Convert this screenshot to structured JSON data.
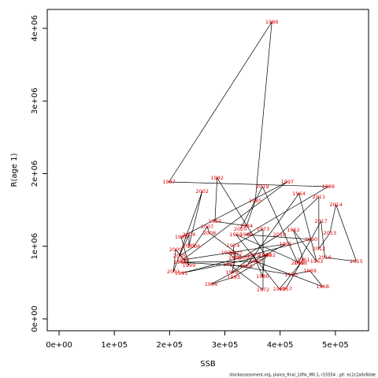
{
  "chart_data": {
    "type": "scatter",
    "path": true,
    "xlabel": "SSB",
    "ylabel": "R(age 1)",
    "footnote": "stockassessment.org, plaice_final_10fix_M0.1, r15554 , git: ec2c2a0c6dde",
    "color": "#e00000",
    "line_color": "#000000",
    "labels": [
      1957,
      1958,
      1959,
      1960,
      1961,
      1962,
      1963,
      1964,
      1965,
      1966,
      1967,
      1968,
      1969,
      1970,
      1971,
      1972,
      1973,
      1974,
      1975,
      1976,
      1977,
      1978,
      1979,
      1980,
      1981,
      1982,
      1983,
      1984,
      1985,
      1986,
      1987,
      1988,
      1989,
      1990,
      1991,
      1992,
      1993,
      1994,
      1995,
      1996,
      1997,
      1998,
      1999,
      2000,
      2001,
      2002,
      2003,
      2004,
      2005,
      2006,
      2007,
      2008,
      2009,
      2010,
      2011,
      2012,
      2013,
      2014,
      2015,
      2016,
      2017,
      2018,
      2019,
      2020
    ],
    "x": [
      410000,
      437000,
      320000,
      399000,
      442000,
      424000,
      466000,
      434000,
      339000,
      219000,
      356000,
      477000,
      454000,
      420000,
      308000,
      369000,
      369000,
      315000,
      318000,
      305000,
      320000,
      313000,
      352000,
      368000,
      373000,
      286000,
      282000,
      339000,
      355000,
      385000,
      199000,
      487000,
      339000,
      456000,
      221000,
      380000,
      316000,
      275000,
      410000,
      224000,
      413000,
      221000,
      235000,
      211000,
      207000,
      259000,
      235000,
      235000,
      218000,
      244000,
      268000,
      272000,
      332000,
      399000,
      470000,
      470000,
      490000,
      501000,
      538000,
      481000,
      474000,
      432000,
      368000,
      328000
    ],
    "values": [
      412000,
      770000,
      1160000,
      412000,
      813000,
      1225000,
      791000,
      1724000,
      726000,
      780000,
      791000,
      444000,
      661000,
      607000,
      748000,
      401000,
      1236000,
      1008000,
      835000,
      911000,
      900000,
      640000,
      878000,
      585000,
      878000,
      1940000,
      1344000,
      1279000,
      1626000,
      4087000,
      1886000,
      1821000,
      1160000,
      1095000,
      629000,
      878000,
      575000,
      477000,
      1030000,
      813000,
      1886000,
      1127000,
      737000,
      954000,
      650000,
      1756000,
      1008000,
      1160000,
      867000,
      997000,
      1268000,
      1182000,
      846000,
      1160000,
      1680000,
      965000,
      1182000,
      1572000,
      791000,
      846000,
      1344000,
      770000,
      1821000,
      1236000
    ],
    "xlim": [
      -21400,
      560000
    ],
    "ylim": [
      -163000,
      4260000
    ],
    "xticks": [
      {
        "value": 0,
        "label": "0e+00"
      },
      {
        "value": 100000,
        "label": "1e+05"
      },
      {
        "value": 200000,
        "label": "2e+05"
      },
      {
        "value": 300000,
        "label": "3e+05"
      },
      {
        "value": 400000,
        "label": "4e+05"
      },
      {
        "value": 500000,
        "label": "5e+05"
      }
    ],
    "yticks": [
      {
        "value": 0,
        "label": "0e+00"
      },
      {
        "value": 1000000,
        "label": "1e+06"
      },
      {
        "value": 2000000,
        "label": "2e+06"
      },
      {
        "value": 3000000,
        "label": "3e+06"
      },
      {
        "value": 4000000,
        "label": "4e+06"
      }
    ]
  }
}
